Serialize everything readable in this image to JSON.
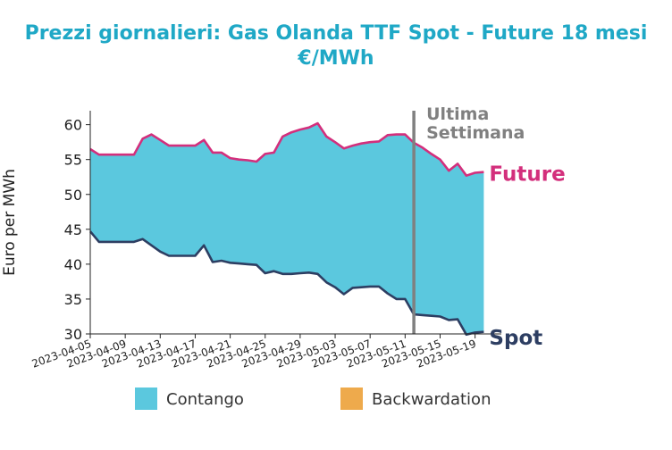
{
  "chart_data": {
    "type": "area",
    "title": "Prezzi giornalieri: Gas Olanda TTF Spot - Future 18 mesi",
    "subtitle": "€/MWh",
    "ylabel": "Euro per MWh",
    "xlabel": "",
    "ylim": [
      30,
      62
    ],
    "yticks": [
      30,
      35,
      40,
      45,
      50,
      55,
      60
    ],
    "xlim": [
      "2023-04-05",
      "2023-05-22"
    ],
    "xticks": [
      "2023-04-05",
      "2023-04-09",
      "2023-04-13",
      "2023-04-17",
      "2023-04-21",
      "2023-04-25",
      "2023-04-29",
      "2023-05-03",
      "2023-05-07",
      "2023-05-11",
      "2023-05-15",
      "2023-05-19"
    ],
    "grid": false,
    "legend_placement": "bottom",
    "legend": [
      {
        "label": "Contango",
        "color": "#5bc8de"
      },
      {
        "label": "Backwardation",
        "color": "#eeaa4c"
      }
    ],
    "colors": {
      "title": "#1fa8c6",
      "future": "#d32f7c",
      "spot": "#2d3e62",
      "contango": "#5bc8de",
      "backwardation": "#eeaa4c",
      "vline": "#808080"
    },
    "vline": {
      "x": "2023-05-12",
      "label": "Ultima\nSettimana"
    },
    "series": [
      {
        "name": "Future",
        "x": [
          "2023-04-05",
          "2023-04-06",
          "2023-04-07",
          "2023-04-08",
          "2023-04-09",
          "2023-04-10",
          "2023-04-11",
          "2023-04-12",
          "2023-04-13",
          "2023-04-14",
          "2023-04-15",
          "2023-04-16",
          "2023-04-17",
          "2023-04-18",
          "2023-04-19",
          "2023-04-20",
          "2023-04-21",
          "2023-04-22",
          "2023-04-23",
          "2023-04-24",
          "2023-04-25",
          "2023-04-26",
          "2023-04-27",
          "2023-04-28",
          "2023-04-29",
          "2023-04-30",
          "2023-05-01",
          "2023-05-02",
          "2023-05-03",
          "2023-05-04",
          "2023-05-05",
          "2023-05-06",
          "2023-05-07",
          "2023-05-08",
          "2023-05-09",
          "2023-05-10",
          "2023-05-11",
          "2023-05-12",
          "2023-05-13",
          "2023-05-14",
          "2023-05-15",
          "2023-05-16",
          "2023-05-17",
          "2023-05-18",
          "2023-05-19",
          "2023-05-20"
        ],
        "values": [
          56.5,
          55.7,
          55.7,
          55.7,
          55.7,
          55.7,
          58.0,
          58.6,
          57.8,
          57.0,
          57.0,
          57.0,
          57.0,
          57.8,
          56.0,
          56.0,
          55.2,
          55.0,
          54.9,
          54.7,
          55.8,
          56.0,
          58.3,
          58.9,
          59.3,
          59.6,
          60.2,
          58.3,
          57.5,
          56.6,
          57.0,
          57.3,
          57.5,
          57.6,
          58.5,
          58.6,
          58.6,
          57.4,
          56.7,
          55.8,
          55.0,
          53.4,
          54.4,
          52.7,
          53.1,
          53.2
        ]
      },
      {
        "name": "Spot",
        "x": [
          "2023-04-05",
          "2023-04-06",
          "2023-04-07",
          "2023-04-08",
          "2023-04-09",
          "2023-04-10",
          "2023-04-11",
          "2023-04-12",
          "2023-04-13",
          "2023-04-14",
          "2023-04-15",
          "2023-04-16",
          "2023-04-17",
          "2023-04-18",
          "2023-04-19",
          "2023-04-20",
          "2023-04-21",
          "2023-04-22",
          "2023-04-23",
          "2023-04-24",
          "2023-04-25",
          "2023-04-26",
          "2023-04-27",
          "2023-04-28",
          "2023-04-29",
          "2023-04-30",
          "2023-05-01",
          "2023-05-02",
          "2023-05-03",
          "2023-05-04",
          "2023-05-05",
          "2023-05-06",
          "2023-05-07",
          "2023-05-08",
          "2023-05-09",
          "2023-05-10",
          "2023-05-11",
          "2023-05-12",
          "2023-05-13",
          "2023-05-14",
          "2023-05-15",
          "2023-05-16",
          "2023-05-17",
          "2023-05-18",
          "2023-05-19",
          "2023-05-20"
        ],
        "values": [
          44.7,
          43.2,
          43.2,
          43.2,
          43.2,
          43.2,
          43.6,
          42.7,
          41.8,
          41.2,
          41.2,
          41.2,
          41.2,
          42.7,
          40.3,
          40.5,
          40.2,
          40.1,
          40.0,
          39.9,
          38.7,
          39.0,
          38.6,
          38.6,
          38.7,
          38.8,
          38.6,
          37.4,
          36.7,
          35.7,
          36.6,
          36.7,
          36.8,
          36.8,
          35.8,
          35.0,
          35.0,
          32.8,
          32.7,
          32.6,
          32.5,
          32.0,
          32.1,
          29.9,
          30.2,
          30.3
        ]
      }
    ]
  }
}
